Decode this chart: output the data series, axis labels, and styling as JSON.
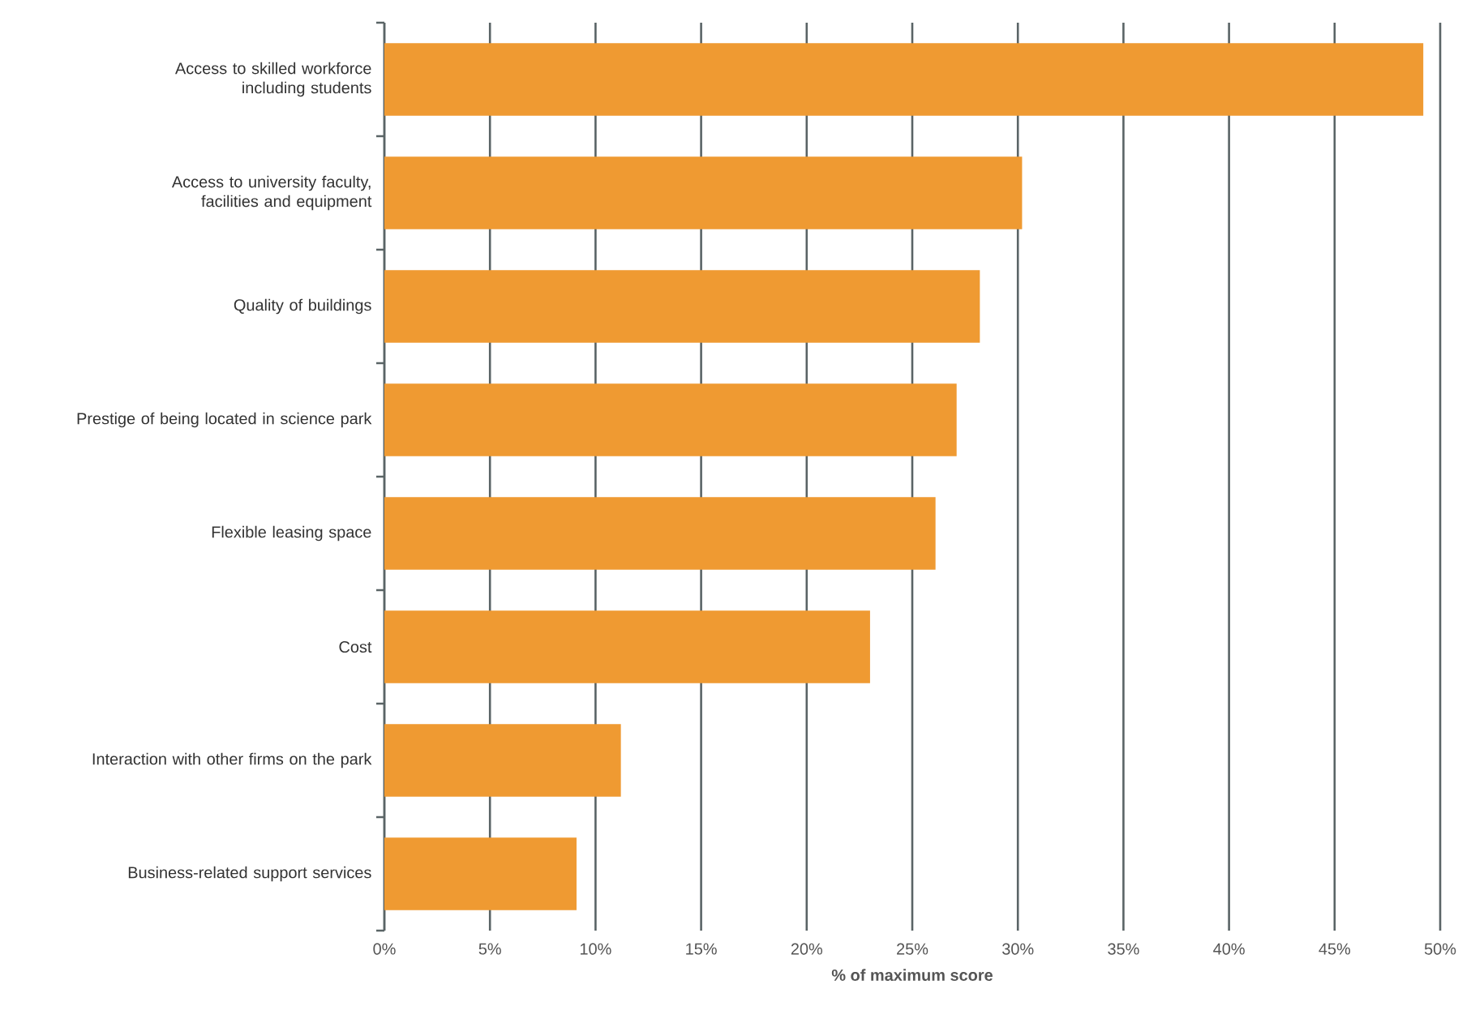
{
  "chart_data": {
    "type": "bar",
    "orientation": "horizontal",
    "xlabel": "% of maximum score",
    "categories": [
      "Access to skilled workforce including students",
      "Access to university faculty, facilities and equipment",
      "Quality of buildings",
      "Prestige of being located in science park",
      "Flexible leasing space",
      "Cost",
      "Interaction with other firms on the park",
      "Business-related support services"
    ],
    "values": [
      49.2,
      30.2,
      28.2,
      27.1,
      26.1,
      23.0,
      11.2,
      9.1
    ],
    "color": "#ef9a32",
    "xlim": [
      0,
      50
    ],
    "xticks": [
      {
        "value": 0,
        "label": "0%"
      },
      {
        "value": 5,
        "label": "5%"
      },
      {
        "value": 10,
        "label": "10%"
      },
      {
        "value": 15,
        "label": "15%"
      },
      {
        "value": 20,
        "label": "20%"
      },
      {
        "value": 25,
        "label": "25%"
      },
      {
        "value": 30,
        "label": "30%"
      },
      {
        "value": 35,
        "label": "35%"
      },
      {
        "value": 40,
        "label": "40%"
      },
      {
        "value": 45,
        "label": "45%"
      },
      {
        "value": 50,
        "label": "50%"
      }
    ],
    "grid": "x"
  }
}
